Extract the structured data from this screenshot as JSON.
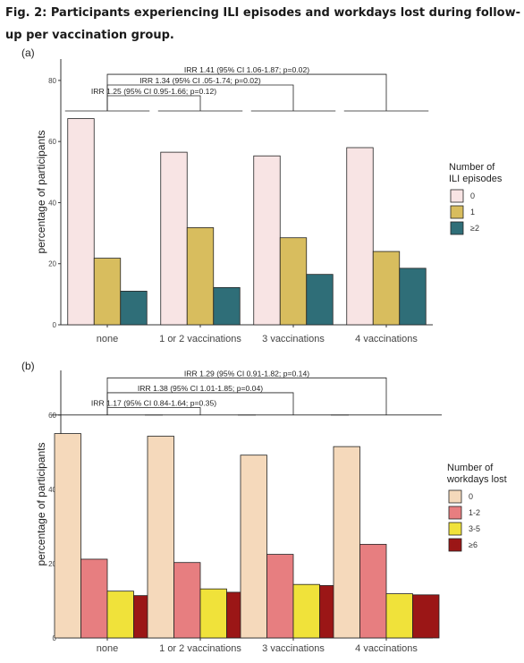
{
  "figure": {
    "title": "Fig. 2: Participants experiencing ILI episodes and workdays lost during follow-up per vaccination group."
  },
  "chart_data": [
    {
      "type": "bar",
      "panel_label": "(a)",
      "ylabel": "percentage of participants",
      "ylim": [
        0,
        87
      ],
      "yticks": [
        0,
        20,
        40,
        60,
        80
      ],
      "categories": [
        "none",
        "1 or 2 vaccinations",
        "3 vaccinations",
        "4 vaccinations"
      ],
      "legend": {
        "title_lines": [
          "Number of",
          "ILI episodes"
        ],
        "placement": "right"
      },
      "series": [
        {
          "name": "0",
          "color": "#f8e4e4",
          "values": [
            67.5,
            56.5,
            55.3,
            58
          ]
        },
        {
          "name": "1",
          "color": "#d8bd5e",
          "values": [
            21.8,
            31.8,
            28.5,
            24
          ]
        },
        {
          "name": "≥2",
          "color": "#2f6e78",
          "values": [
            11,
            12.2,
            16.5,
            18.5
          ]
        }
      ],
      "annotations": [
        {
          "text": "IRR 1.41 (95% CI 1.06-1.87; p=0.02)",
          "from": 0,
          "to": 3,
          "level": 82
        },
        {
          "text": "IRR 1.34 (95% CI .05-1.74; p=0.02)",
          "from": 0,
          "to": 2,
          "level": 78.5
        },
        {
          "text": "IRR 1.25 (95% CI 0.95-1.66; p=0.12)",
          "from": 0,
          "to": 1,
          "level": 75
        }
      ],
      "group_brace_level": 70
    },
    {
      "type": "bar",
      "panel_label": "(b)",
      "ylabel": "percentage of participants",
      "ylim": [
        0,
        72
      ],
      "yticks": [
        0,
        20,
        40,
        60
      ],
      "categories": [
        "none",
        "1 or 2 vaccinations",
        "3 vaccinations",
        "4 vaccinations"
      ],
      "legend": {
        "title_lines": [
          "Number of",
          "workdays lost"
        ],
        "placement": "right"
      },
      "series": [
        {
          "name": "0",
          "color": "#f5d9bb",
          "values": [
            55,
            54.3,
            49.2,
            51.5
          ]
        },
        {
          "name": "1-2",
          "color": "#e77e80",
          "values": [
            21.2,
            20.3,
            22.5,
            25.2
          ]
        },
        {
          "name": "3-5",
          "color": "#f0e23a",
          "values": [
            12.6,
            13.2,
            14.4,
            11.9
          ]
        },
        {
          "name": "≥6",
          "color": "#9b1616",
          "values": [
            11.4,
            12.3,
            14.1,
            11.6
          ]
        }
      ],
      "annotations": [
        {
          "text": "IRR 1.29 (95% CI 0.91-1.82; p=0.14)",
          "from": 0,
          "to": 3,
          "level": 70
        },
        {
          "text": "IRR 1.38 (95% CI 1.01-1.85; p=0.04)",
          "from": 0,
          "to": 2,
          "level": 66
        },
        {
          "text": "IRR 1.17 (95% CI 0.84-1.64; p=0.35)",
          "from": 0,
          "to": 1,
          "level": 62
        }
      ],
      "group_brace_level": 60
    }
  ]
}
